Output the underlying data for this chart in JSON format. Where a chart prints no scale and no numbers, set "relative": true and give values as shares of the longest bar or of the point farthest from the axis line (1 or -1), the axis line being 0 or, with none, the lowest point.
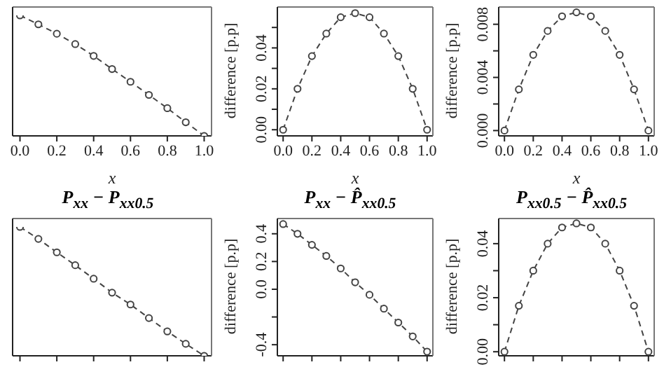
{
  "chart_data": [
    {
      "type": "line",
      "relative": true,
      "xlabel": "x",
      "x": [
        0,
        0.1,
        0.2,
        0.3,
        0.4,
        0.5,
        0.6,
        0.7,
        0.8,
        0.9,
        1
      ],
      "xlim": [
        -0.04,
        1.04
      ],
      "xticks": [
        {
          "value": 0,
          "label": "0.0"
        },
        0.2,
        0.4,
        0.6,
        0.8,
        {
          "value": 1,
          "label": "1.0"
        }
      ],
      "tick_labels": "x",
      "marker": "circle",
      "line_style": "dashed",
      "grid": false,
      "legend": false,
      "series": [
        {
          "color": "#444444",
          "values": [
            1,
            0.926,
            0.848,
            0.762,
            0.664,
            0.555,
            0.449,
            0.34,
            0.23,
            0.113,
            0
          ]
        }
      ]
    },
    {
      "type": "line",
      "xlabel": "x",
      "ylabel": "difference [p.p]",
      "x": [
        0,
        0.1,
        0.2,
        0.3,
        0.4,
        0.5,
        0.6,
        0.7,
        0.8,
        0.9,
        1
      ],
      "xlim": [
        -0.04,
        1.04
      ],
      "xticks": [
        {
          "value": 0,
          "label": "0.0"
        },
        0.2,
        0.4,
        0.6,
        0.8,
        {
          "value": 1,
          "label": "1.0"
        }
      ],
      "ylim": [
        -0.003,
        0.06
      ],
      "yticks": [
        {
          "value": 0,
          "label": "0.00"
        },
        {
          "value": 0.01,
          "label": null
        },
        0.02,
        {
          "value": 0.03,
          "label": null
        },
        0.04,
        {
          "value": 0.05,
          "label": null
        }
      ],
      "marker": "circle",
      "line_style": "dashed",
      "grid": false,
      "legend": false,
      "series": [
        {
          "color": "#444444",
          "values": [
            0,
            0.02,
            0.036,
            0.047,
            0.055,
            0.057,
            0.055,
            0.047,
            0.036,
            0.02,
            0
          ]
        }
      ]
    },
    {
      "type": "line",
      "xlabel": "x",
      "ylabel": "difference [p.p]",
      "x": [
        0,
        0.1,
        0.2,
        0.3,
        0.4,
        0.5,
        0.6,
        0.7,
        0.8,
        0.9,
        1
      ],
      "xlim": [
        -0.04,
        1.04
      ],
      "xticks": [
        {
          "value": 0,
          "label": "0.0"
        },
        0.2,
        0.4,
        0.6,
        0.8,
        {
          "value": 1,
          "label": "1.0"
        }
      ],
      "ylim": [
        -0.0004,
        0.0093
      ],
      "yticks": [
        {
          "value": 0,
          "label": "0.000"
        },
        {
          "value": 0.002,
          "label": null
        },
        0.004,
        {
          "value": 0.006,
          "label": null
        },
        0.008
      ],
      "marker": "circle",
      "line_style": "dashed",
      "grid": false,
      "legend": false,
      "series": [
        {
          "color": "#444444",
          "values": [
            0,
            0.0031,
            0.0057,
            0.0075,
            0.0086,
            0.0089,
            0.0086,
            0.0075,
            0.0057,
            0.0031,
            0
          ]
        }
      ]
    },
    {
      "type": "line",
      "relative": true,
      "title": "P$_{xx}$ − P$_{xx0.5}$",
      "x": [
        0,
        0.1,
        0.2,
        0.3,
        0.4,
        0.5,
        0.6,
        0.7,
        0.8,
        0.9,
        1
      ],
      "xlim": [
        -0.04,
        1.04
      ],
      "xticks": [
        {
          "value": 0,
          "label": null
        },
        {
          "value": 0.2,
          "label": null
        },
        {
          "value": 0.4,
          "label": null
        },
        {
          "value": 0.6,
          "label": null
        },
        {
          "value": 0.8,
          "label": null
        },
        {
          "value": 1,
          "label": null
        }
      ],
      "tick_labels": false,
      "marker": "circle",
      "line_style": "dashed",
      "grid": false,
      "legend": false,
      "series": [
        {
          "color": "#444444",
          "values": [
            1,
            0.907,
            0.803,
            0.703,
            0.598,
            0.49,
            0.398,
            0.293,
            0.189,
            0.093,
            0
          ]
        }
      ]
    },
    {
      "type": "line",
      "title": "P$_{xx}$ − P̂$_{xx0.5}$",
      "ylabel": "difference [p.p]",
      "x": [
        0,
        0.1,
        0.2,
        0.3,
        0.4,
        0.5,
        0.6,
        0.7,
        0.8,
        0.9,
        1
      ],
      "xlim": [
        -0.04,
        1.04
      ],
      "xticks": [
        {
          "value": 0,
          "label": null
        },
        {
          "value": 0.2,
          "label": null
        },
        {
          "value": 0.4,
          "label": null
        },
        {
          "value": 0.6,
          "label": null
        },
        {
          "value": 0.8,
          "label": null
        },
        {
          "value": 1,
          "label": null
        }
      ],
      "ylim": [
        -0.48,
        0.51
      ],
      "yticks": [
        {
          "value": -0.4,
          "label": "-0.4"
        },
        {
          "value": -0.2,
          "label": null
        },
        {
          "value": 0,
          "label": "0.0"
        },
        0.2,
        0.4
      ],
      "tick_labels": "y",
      "marker": "circle",
      "line_style": "dashed",
      "grid": false,
      "legend": false,
      "series": [
        {
          "color": "#444444",
          "values": [
            0.47,
            0.4,
            0.32,
            0.24,
            0.15,
            0.05,
            -0.04,
            -0.14,
            -0.24,
            -0.34,
            -0.45
          ]
        }
      ]
    },
    {
      "type": "line",
      "title": "P$_{xx0.5}$ − P̂$_{xx0.5}$",
      "ylabel": "difference [p.p]",
      "x": [
        0,
        0.1,
        0.2,
        0.3,
        0.4,
        0.5,
        0.6,
        0.7,
        0.8,
        0.9,
        1
      ],
      "xlim": [
        -0.04,
        1.04
      ],
      "xticks": [
        {
          "value": 0,
          "label": null
        },
        {
          "value": 0.2,
          "label": null
        },
        {
          "value": 0.4,
          "label": null
        },
        {
          "value": 0.6,
          "label": null
        },
        {
          "value": 0.8,
          "label": null
        },
        {
          "value": 1,
          "label": null
        }
      ],
      "ylim": [
        -0.0015,
        0.0493
      ],
      "yticks": [
        {
          "value": 0,
          "label": "0.00"
        },
        {
          "value": 0.01,
          "label": null
        },
        0.02,
        {
          "value": 0.03,
          "label": null
        },
        0.04
      ],
      "tick_labels": "y",
      "marker": "circle",
      "line_style": "dashed",
      "grid": false,
      "legend": false,
      "series": [
        {
          "color": "#444444",
          "values": [
            0,
            0.017,
            0.03,
            0.04,
            0.046,
            0.0475,
            0.046,
            0.04,
            0.03,
            0.017,
            0
          ]
        }
      ]
    }
  ]
}
